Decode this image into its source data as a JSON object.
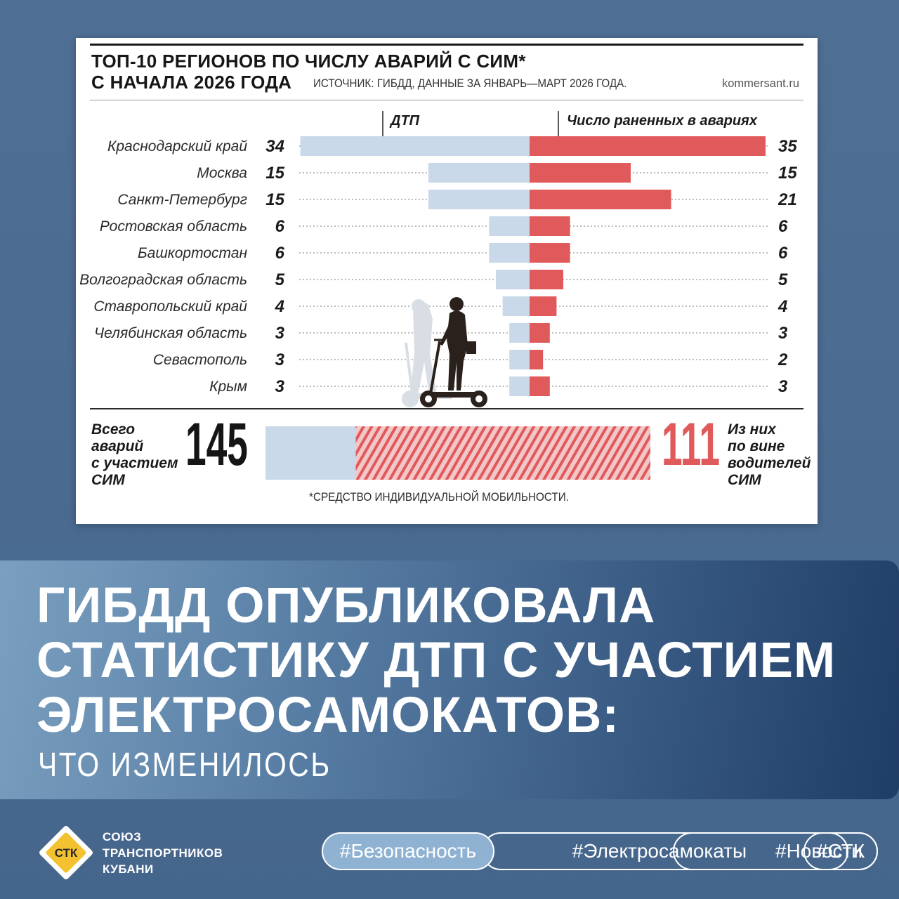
{
  "chart_data": {
    "type": "bar",
    "title_line1": "ТОП-10 РЕГИОНОВ ПО ЧИСЛУ АВАРИЙ С СИМ*",
    "title_line2": "С НАЧАЛА 2026 ГОДА",
    "source": "ИСТОЧНИК: ГИБДД, ДАННЫЕ ЗА ЯНВАРЬ—МАРТ 2026 ГОДА.",
    "site": "kommersant.ru",
    "categories": [
      "Краснодарский край",
      "Москва",
      "Санкт-Петербург",
      "Ростовская область",
      "Башкортостан",
      "Волгоградская область",
      "Ставропольский край",
      "Челябинская область",
      "Севастополь",
      "Крым"
    ],
    "series": [
      {
        "name": "ДТП",
        "values": [
          34,
          15,
          15,
          6,
          6,
          5,
          4,
          3,
          3,
          3
        ],
        "color": "#c9d9ea"
      },
      {
        "name": "Число раненных в авариях",
        "values": [
          35,
          15,
          21,
          6,
          6,
          5,
          4,
          3,
          2,
          3
        ],
        "color": "#e0595b"
      }
    ],
    "totals": {
      "total_label": [
        "Всего",
        "аварий",
        "с участием",
        "СИМ"
      ],
      "total_value": "145",
      "driver_label": [
        "Из них",
        "по вине",
        "водителей",
        "СИМ"
      ],
      "driver_value": "111",
      "total_num": 145,
      "driver_num": 111
    },
    "footnote": "*СРЕДСТВО ИНДИВИДУАЛЬНОЙ МОБИЛЬНОСТИ."
  },
  "headline": {
    "line1": "ГИБДД ОПУБЛИКОВАЛА",
    "line2": "СТАТИСТИКУ ДТП С УЧАСТИЕМ",
    "line3": "ЭЛЕКТРОСАМОКАТОВ:",
    "subtitle": "ЧТО ИЗМЕНИЛОСЬ"
  },
  "logo": {
    "mark": "СТК",
    "line1": "СОЮЗ",
    "line2": "ТРАНСПОРТНИКОВ",
    "line3": "КУБАНИ"
  },
  "tags": [
    "#Безопасность",
    "#Электросамокаты",
    "#Новости",
    "#СТК"
  ],
  "colors": {
    "dtp": "#c9d9ea",
    "injured": "#e0595b",
    "band_dark": "#1f3d66",
    "background": "#4b6a8f"
  }
}
